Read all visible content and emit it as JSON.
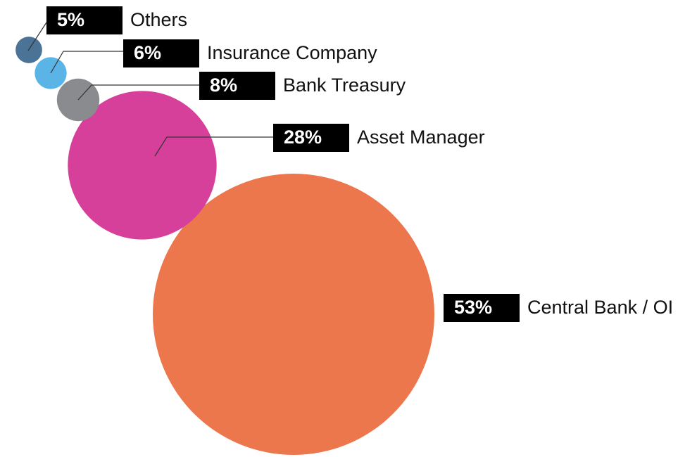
{
  "chart_data": {
    "type": "bubble",
    "categories": [
      "Others",
      "Insurance Company",
      "Bank Treasury",
      "Asset Manager",
      "Central Bank / OI"
    ],
    "values": [
      5,
      6,
      8,
      28,
      53
    ],
    "value_labels": [
      "5%",
      "6%",
      "8%",
      "28%",
      "53%"
    ],
    "colors": [
      "#4a7396",
      "#5ab4e5",
      "#8a8b8f",
      "#d6409a",
      "#ed774d"
    ]
  }
}
